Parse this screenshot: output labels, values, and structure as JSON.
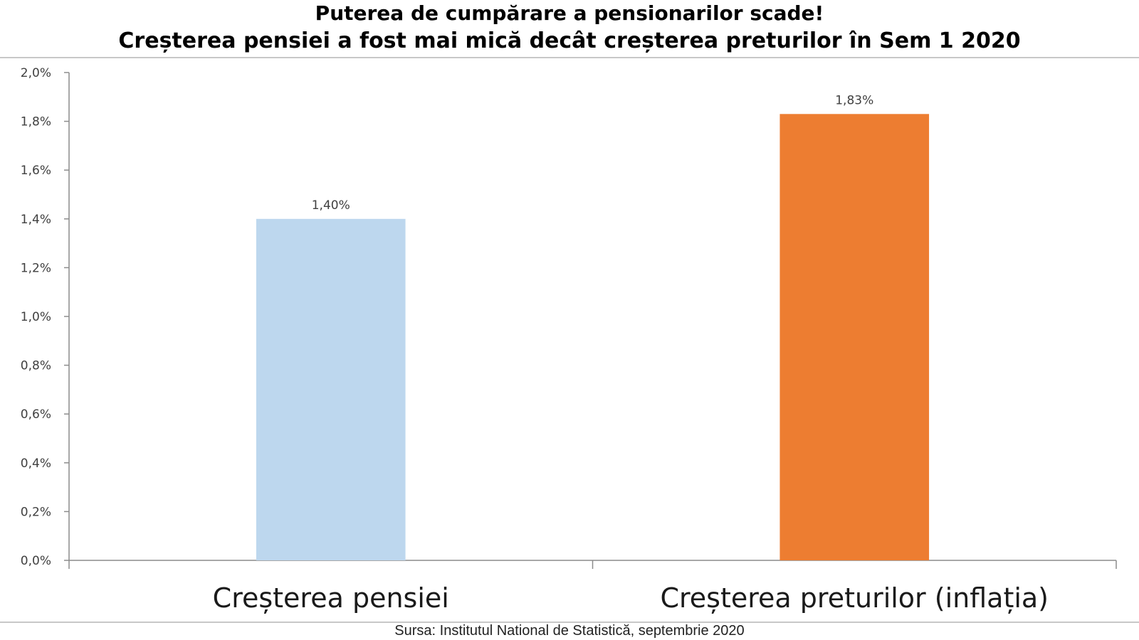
{
  "chart_data": {
    "type": "bar",
    "title": "Puterea de cumpărare a pensionarilor scade!",
    "subtitle": "Creșterea pensiei a fost mai mică decât creșterea preturilor în Sem 1 2020",
    "categories": [
      "Creșterea pensiei",
      "Creșterea preturilor (inflația)"
    ],
    "values": [
      1.4,
      1.83
    ],
    "value_labels": [
      "1,40%",
      "1,83%"
    ],
    "bar_colors": [
      "#bdd7ee",
      "#ed7d31"
    ],
    "ylim": [
      0,
      2.0
    ],
    "yticks": [
      0,
      0.2,
      0.4,
      0.6,
      0.8,
      1.0,
      1.2,
      1.4,
      1.6,
      1.8,
      2.0
    ],
    "ytick_labels": [
      "0,0%",
      "0,2%",
      "0,4%",
      "0,6%",
      "0,8%",
      "1,0%",
      "1,2%",
      "1,4%",
      "1,6%",
      "1,8%",
      "2,0%"
    ],
    "xlabel": "",
    "ylabel": "",
    "grid": false,
    "legend": "none"
  },
  "source": "Sursa: Institutul National de Statistică, septembrie 2020"
}
